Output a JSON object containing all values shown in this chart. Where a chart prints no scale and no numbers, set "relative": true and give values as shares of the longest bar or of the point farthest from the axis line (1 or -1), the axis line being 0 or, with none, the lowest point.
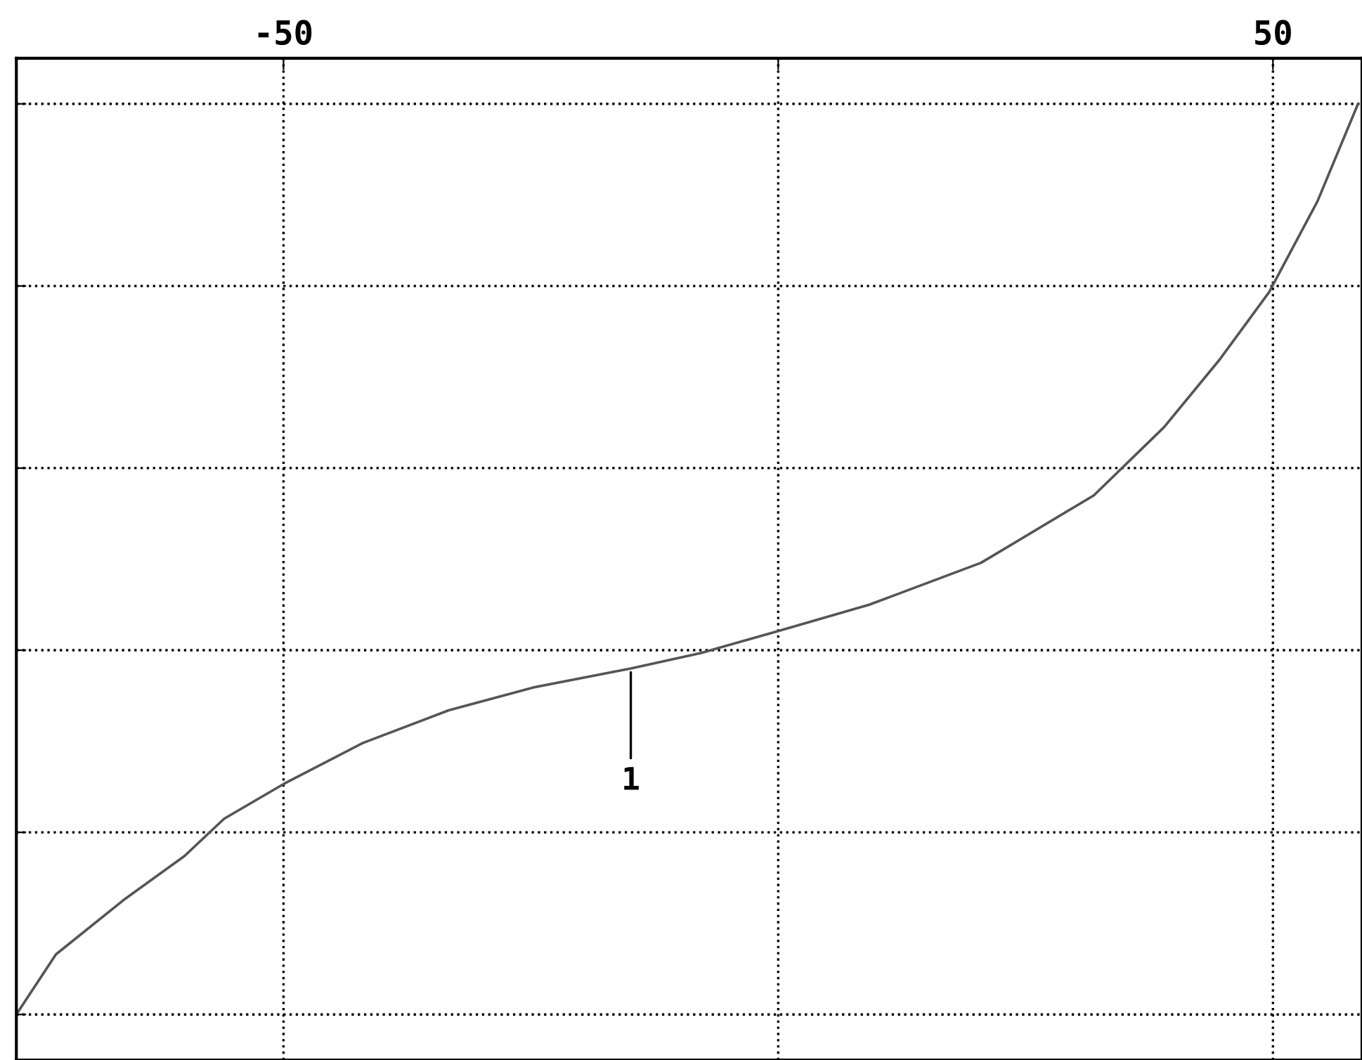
{
  "chart_data": {
    "type": "line",
    "relative": true,
    "x": [
      -77,
      -73,
      -66,
      -60,
      -56,
      -50,
      -42,
      -33.3,
      -24.8,
      -14.9,
      -7.8,
      0,
      9.2,
      20.5,
      31.9,
      39,
      44.6,
      49.6,
      54.5,
      58.6
    ],
    "series": [
      {
        "color": "#555555",
        "values": [
          0,
          0.066,
          0.127,
          0.174,
          0.215,
          0.253,
          0.298,
          0.334,
          0.359,
          0.38,
          0.397,
          0.421,
          0.45,
          0.496,
          0.57,
          0.645,
          0.719,
          0.793,
          0.893,
          1
        ]
      }
    ],
    "xlim": [
      -77,
      59
    ],
    "xticks": [
      -50,
      {
        "value": 0,
        "label": null
      },
      50
    ],
    "grid": true,
    "line_style": "solid",
    "marker": "none",
    "annotations": [
      {
        "text": "1",
        "x": -14.9,
        "y": 0.38
      }
    ]
  }
}
